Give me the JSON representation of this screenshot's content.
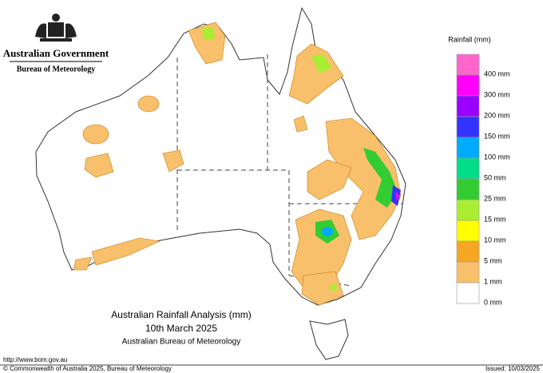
{
  "header": {
    "government": "Australian Government",
    "agency": "Bureau of Meteorology"
  },
  "legend": {
    "title": "Rainfall (mm)",
    "items": [
      {
        "color": "#ff66cc",
        "label": "400 mm"
      },
      {
        "color": "#ff00ff",
        "label": "300 mm"
      },
      {
        "color": "#9900ff",
        "label": "200 mm"
      },
      {
        "color": "#3333ff",
        "label": "150 mm"
      },
      {
        "color": "#00aaff",
        "label": "100 mm"
      },
      {
        "color": "#00dd88",
        "label": "50 mm"
      },
      {
        "color": "#33cc33",
        "label": "25 mm"
      },
      {
        "color": "#aaee33",
        "label": "15 mm"
      },
      {
        "color": "#ffff00",
        "label": "10 mm"
      },
      {
        "color": "#f5a623",
        "label": "5 mm"
      },
      {
        "color": "#f8c06a",
        "label": "1 mm"
      },
      {
        "color": "#ffffff",
        "label": "0 mm"
      }
    ]
  },
  "caption": {
    "title": "Australian Rainfall Analysis (mm)",
    "date": "10th March 2025",
    "source": "Australian Bureau of Meteorology"
  },
  "footer": {
    "url": "http://www.bom.gov.au",
    "copyright": "© Commonwealth of Australia 2025, Bureau of Meteorology",
    "issued": "Issued: 10/03/2025"
  }
}
